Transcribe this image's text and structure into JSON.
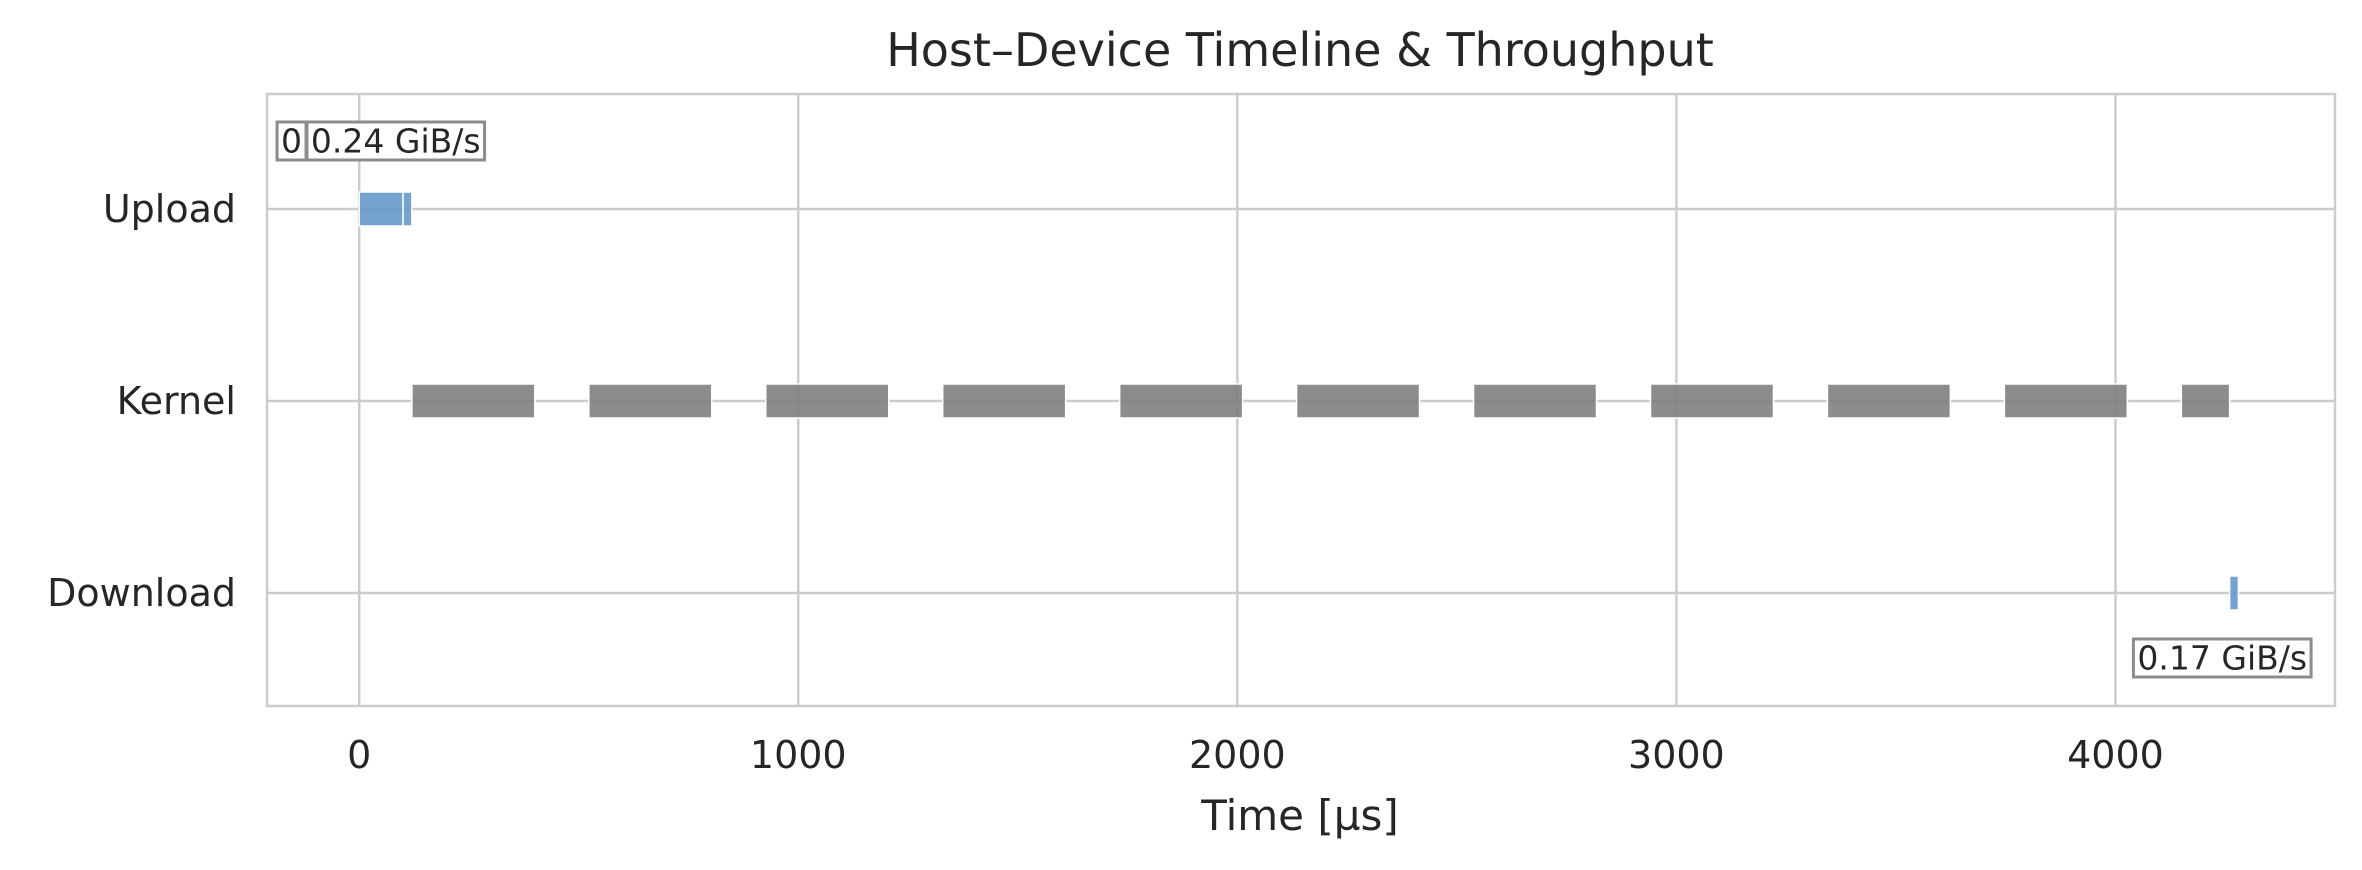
{
  "chart_data": {
    "type": "timeline",
    "title": "Host–Device Timeline & Throughput",
    "xlabel": "Time [µs]",
    "ylabel": "",
    "xlim": [
      -210,
      4500
    ],
    "xticks": [
      0,
      1000,
      2000,
      3000,
      4000
    ],
    "grid": true,
    "lanes": [
      {
        "name": "Upload",
        "color": "#6699cc"
      },
      {
        "name": "Kernel",
        "color": "#808080"
      },
      {
        "name": "Download",
        "color": "#6699cc"
      }
    ],
    "segments": [
      {
        "lane": "Upload",
        "start": 0,
        "end": 100
      },
      {
        "lane": "Upload",
        "start": 100,
        "end": 120
      },
      {
        "lane": "Kernel",
        "start": 120,
        "end": 400
      },
      {
        "lane": "Kernel",
        "start": 523,
        "end": 803
      },
      {
        "lane": "Kernel",
        "start": 926,
        "end": 1206
      },
      {
        "lane": "Kernel",
        "start": 1329,
        "end": 1609
      },
      {
        "lane": "Kernel",
        "start": 1732,
        "end": 2012
      },
      {
        "lane": "Kernel",
        "start": 2135,
        "end": 2415
      },
      {
        "lane": "Kernel",
        "start": 2538,
        "end": 2818
      },
      {
        "lane": "Kernel",
        "start": 2941,
        "end": 3221
      },
      {
        "lane": "Kernel",
        "start": 3344,
        "end": 3624
      },
      {
        "lane": "Kernel",
        "start": 3747,
        "end": 4027
      },
      {
        "lane": "Kernel",
        "start": 4150,
        "end": 4260
      },
      {
        "lane": "Download",
        "start": 4260,
        "end": 4280
      }
    ],
    "annotations": [
      {
        "text": "0",
        "lane": "Upload",
        "x": -178,
        "side": "above"
      },
      {
        "text": "0.24 GiB/s",
        "lane": "Upload",
        "x": -110,
        "side": "above"
      },
      {
        "text": "0.17 GiB/s",
        "lane": "Download",
        "x": 4050,
        "side": "below"
      }
    ]
  }
}
